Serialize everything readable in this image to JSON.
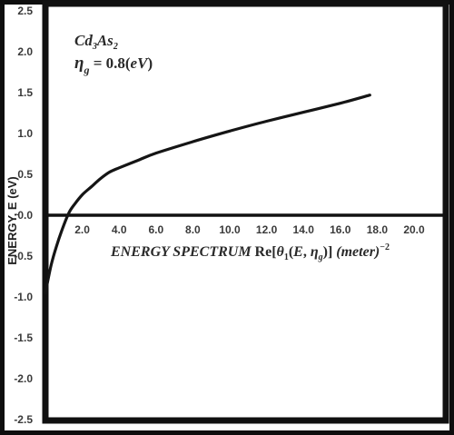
{
  "chart_data": {
    "type": "line",
    "ylabel": "ENERGY, E (eV)",
    "material": {
      "base": "Cd",
      "sub1": "3",
      "mid": "As",
      "sub2": "2"
    },
    "param": {
      "symbol": "η",
      "sub": "g",
      "expr": " = 0.8(",
      "unit": "eV",
      "close": ")"
    },
    "xlabel": {
      "prefix": "ENERGY SPECTRUM",
      "re": " Re[",
      "theta": "θ",
      "theta_sub": "1",
      "args_open": "(",
      "E": "E",
      "comma": ", ",
      "eta": "η",
      "eta_sub": "g",
      "args_close": ")",
      "close": "] ",
      "unit": "(meter)",
      "exp": "−2"
    },
    "xlim": [
      0,
      22
    ],
    "ylim": [
      -2.5,
      2.5
    ],
    "x_ticks": [
      "2.0",
      "4.0",
      "6.0",
      "8.0",
      "10.0",
      "12.0",
      "14.0",
      "16.0",
      "18.0",
      "20.0"
    ],
    "y_ticks": [
      "2.5",
      "2.0",
      "1.5",
      "1.0",
      "0.5",
      "0.0",
      "-0.5",
      "-1.0",
      "-1.5",
      "-2.0",
      "-2.5"
    ],
    "series": [
      {
        "x": [
          0.0,
          0.3,
          0.6,
          1.0,
          1.3,
          1.6,
          2.0,
          2.5,
          3.0,
          3.5,
          4.0,
          5.0,
          6.0,
          8.0,
          10.0,
          12.0,
          14.0,
          16.0,
          17.6
        ],
        "y": [
          -0.95,
          -0.62,
          -0.38,
          -0.12,
          0.04,
          0.14,
          0.25,
          0.35,
          0.45,
          0.53,
          0.58,
          0.67,
          0.76,
          0.9,
          1.03,
          1.15,
          1.26,
          1.37,
          1.47
        ]
      }
    ]
  }
}
